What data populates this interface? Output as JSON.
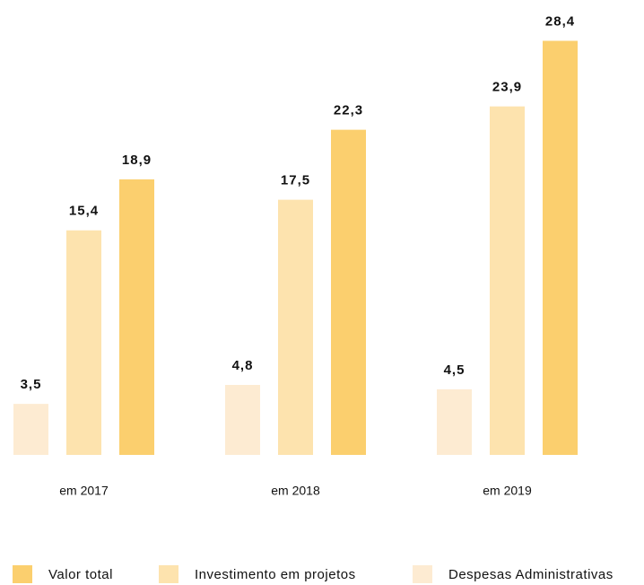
{
  "chart_data": {
    "type": "bar",
    "categories": [
      "em 2017",
      "em 2018",
      "em 2019"
    ],
    "series": [
      {
        "name": "Valor total",
        "color": "#fbcf6e",
        "values": [
          18.9,
          22.3,
          28.4
        ],
        "value_labels": [
          "18,9",
          "22,3",
          "28,4"
        ]
      },
      {
        "name": "Investimento em projetos",
        "color": "#fde3ae",
        "values": [
          15.4,
          17.5,
          23.9
        ],
        "value_labels": [
          "15,4",
          "17,5",
          "23,9"
        ]
      },
      {
        "name": "Despesas Administrativas",
        "color": "#fdebd2",
        "values": [
          3.5,
          4.8,
          4.5
        ],
        "value_labels": [
          "3,5",
          "4,8",
          "4,5"
        ]
      }
    ]
  }
}
